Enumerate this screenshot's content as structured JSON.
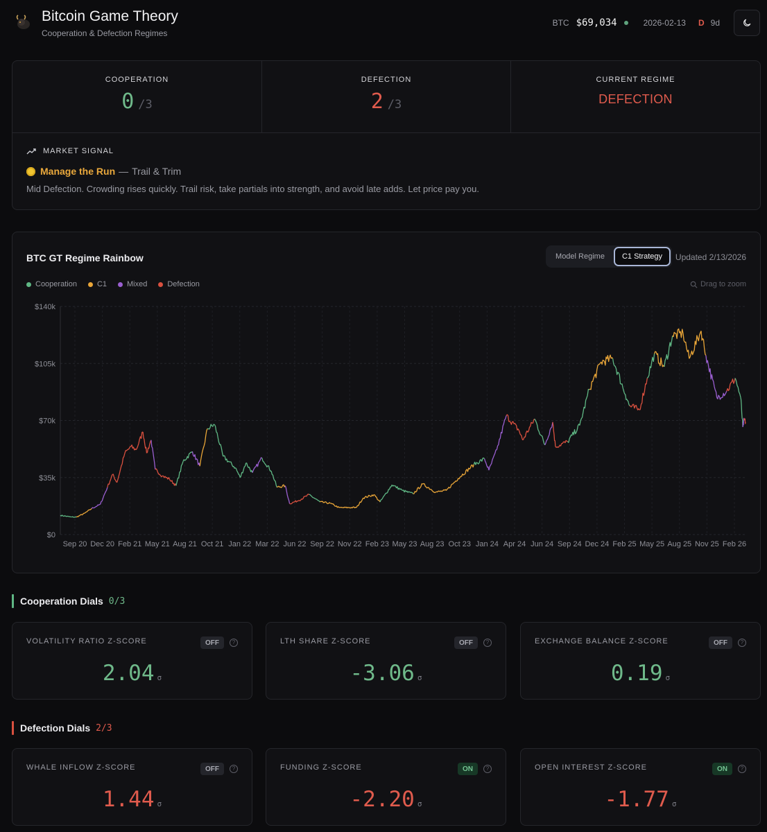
{
  "header": {
    "title": "Bitcoin Game Theory",
    "subtitle": "Cooperation & Defection Regimes",
    "btc_label": "BTC",
    "btc_price": "$69,034",
    "date": "2026-02-13",
    "regime_letter": "D",
    "regime_age": "9d",
    "icons": [
      "bull-logo-icon",
      "moon-icon"
    ]
  },
  "summary": {
    "cooperation": {
      "label": "COOPERATION",
      "value": "0",
      "total": "/3"
    },
    "defection": {
      "label": "DEFECTION",
      "value": "2",
      "total": "/3"
    },
    "regime": {
      "label": "CURRENT REGIME",
      "value": "DEFECTION"
    },
    "signal": {
      "heading": "MARKET SIGNAL",
      "icon": "trending-up-icon",
      "name": "Manage the Run",
      "dash": "—",
      "subtitle": "Trail & Trim",
      "description": "Mid Defection. Crowding rises quickly. Trail risk, take partials into strength, and avoid late adds. Let price pay you."
    }
  },
  "chart": {
    "title": "BTC GT Regime Rainbow",
    "toggle": [
      "Model Regime",
      "C1 Strategy"
    ],
    "toggle_active": "C1 Strategy",
    "updated": "Updated 2/13/2026",
    "zoom_hint": "Drag to zoom",
    "legend": [
      {
        "label": "Cooperation",
        "color": "#5fb784"
      },
      {
        "label": "C1",
        "color": "#eaa638"
      },
      {
        "label": "Mixed",
        "color": "#9a5fd0"
      },
      {
        "label": "Defection",
        "color": "#d9503f"
      }
    ]
  },
  "chart_data": {
    "type": "line",
    "title": "BTC GT Regime Rainbow",
    "ylim": [
      0,
      140000
    ],
    "y_ticks": [
      "$0",
      "$35k",
      "$70k",
      "$105k",
      "$140k"
    ],
    "x_ticks": [
      "Sep 20",
      "Dec 20",
      "Feb 21",
      "May 21",
      "Aug 21",
      "Oct 21",
      "Jan 22",
      "Mar 22",
      "Jun 22",
      "Sep 22",
      "Nov 22",
      "Feb 23",
      "May 23",
      "Aug 23",
      "Oct 23",
      "Jan 24",
      "Apr 24",
      "Jun 24",
      "Sep 24",
      "Dec 24",
      "Feb 25",
      "May 25",
      "Aug 25",
      "Nov 25",
      "Feb 26"
    ],
    "x_range": [
      "2020-08-15",
      "2026-02-13"
    ],
    "grid": true,
    "series": [
      {
        "name": "Cooperation",
        "color": "#5fb784"
      },
      {
        "name": "C1",
        "color": "#eaa638"
      },
      {
        "name": "Mixed",
        "color": "#9a5fd0"
      },
      {
        "name": "Defection",
        "color": "#d9503f"
      }
    ],
    "points": [
      {
        "x": "2020-08-15",
        "y": 11800,
        "r": 0
      },
      {
        "x": "2020-09-15",
        "y": 10800,
        "r": 0
      },
      {
        "x": "2020-10-01",
        "y": 10700,
        "r": 1
      },
      {
        "x": "2020-10-25",
        "y": 13000,
        "r": 1
      },
      {
        "x": "2020-11-15",
        "y": 16000,
        "r": 2
      },
      {
        "x": "2020-12-10",
        "y": 18500,
        "r": 2
      },
      {
        "x": "2020-12-31",
        "y": 29000,
        "r": 3
      },
      {
        "x": "2021-01-15",
        "y": 37000,
        "r": 3
      },
      {
        "x": "2021-01-28",
        "y": 32000,
        "r": 3
      },
      {
        "x": "2021-02-20",
        "y": 50000,
        "r": 3
      },
      {
        "x": "2021-03-10",
        "y": 54000,
        "r": 3
      },
      {
        "x": "2021-03-25",
        "y": 52000,
        "r": 3
      },
      {
        "x": "2021-04-14",
        "y": 63000,
        "r": 3
      },
      {
        "x": "2021-04-25",
        "y": 50000,
        "r": 3
      },
      {
        "x": "2021-05-08",
        "y": 58000,
        "r": 2
      },
      {
        "x": "2021-05-20",
        "y": 40000,
        "r": 3
      },
      {
        "x": "2021-06-10",
        "y": 36000,
        "r": 3
      },
      {
        "x": "2021-07-01",
        "y": 34000,
        "r": 3
      },
      {
        "x": "2021-07-20",
        "y": 30000,
        "r": 0
      },
      {
        "x": "2021-08-10",
        "y": 45000,
        "r": 0
      },
      {
        "x": "2021-09-06",
        "y": 51000,
        "r": 2
      },
      {
        "x": "2021-09-28",
        "y": 42000,
        "r": 1
      },
      {
        "x": "2021-10-20",
        "y": 65000,
        "r": 0
      },
      {
        "x": "2021-11-10",
        "y": 67500,
        "r": 0
      },
      {
        "x": "2021-12-05",
        "y": 48000,
        "r": 0
      },
      {
        "x": "2022-01-10",
        "y": 41000,
        "r": 0
      },
      {
        "x": "2022-01-24",
        "y": 35000,
        "r": 0
      },
      {
        "x": "2022-02-10",
        "y": 44000,
        "r": 0
      },
      {
        "x": "2022-03-01",
        "y": 38000,
        "r": 2
      },
      {
        "x": "2022-03-29",
        "y": 47000,
        "r": 0
      },
      {
        "x": "2022-04-25",
        "y": 39000,
        "r": 0
      },
      {
        "x": "2022-05-12",
        "y": 29000,
        "r": 1
      },
      {
        "x": "2022-06-05",
        "y": 30000,
        "r": 2
      },
      {
        "x": "2022-06-18",
        "y": 19000,
        "r": 3
      },
      {
        "x": "2022-07-15",
        "y": 21000,
        "r": 3
      },
      {
        "x": "2022-08-14",
        "y": 24500,
        "r": 0
      },
      {
        "x": "2022-09-15",
        "y": 20000,
        "r": 1
      },
      {
        "x": "2022-10-15",
        "y": 19200,
        "r": 1
      },
      {
        "x": "2022-11-10",
        "y": 16500,
        "r": 1
      },
      {
        "x": "2022-12-31",
        "y": 16600,
        "r": 1
      },
      {
        "x": "2023-01-20",
        "y": 22500,
        "r": 1
      },
      {
        "x": "2023-02-20",
        "y": 24500,
        "r": 1
      },
      {
        "x": "2023-03-10",
        "y": 20000,
        "r": 0
      },
      {
        "x": "2023-04-14",
        "y": 30500,
        "r": 0
      },
      {
        "x": "2023-05-15",
        "y": 27000,
        "r": 0
      },
      {
        "x": "2023-06-15",
        "y": 25000,
        "r": 1
      },
      {
        "x": "2023-07-13",
        "y": 31000,
        "r": 1
      },
      {
        "x": "2023-08-20",
        "y": 26000,
        "r": 1
      },
      {
        "x": "2023-09-20",
        "y": 27000,
        "r": 1
      },
      {
        "x": "2023-10-25",
        "y": 34500,
        "r": 1
      },
      {
        "x": "2023-12-10",
        "y": 43000,
        "r": 0
      },
      {
        "x": "2024-01-10",
        "y": 46500,
        "r": 2
      },
      {
        "x": "2024-01-23",
        "y": 39500,
        "r": 2
      },
      {
        "x": "2024-02-15",
        "y": 52000,
        "r": 2
      },
      {
        "x": "2024-03-14",
        "y": 73000,
        "r": 3
      },
      {
        "x": "2024-04-20",
        "y": 64000,
        "r": 3
      },
      {
        "x": "2024-05-01",
        "y": 58000,
        "r": 3
      },
      {
        "x": "2024-06-05",
        "y": 71000,
        "r": 0
      },
      {
        "x": "2024-07-05",
        "y": 55000,
        "r": 2
      },
      {
        "x": "2024-07-28",
        "y": 69000,
        "r": 3
      },
      {
        "x": "2024-08-05",
        "y": 54000,
        "r": 3
      },
      {
        "x": "2024-09-10",
        "y": 57000,
        "r": 0
      },
      {
        "x": "2024-10-15",
        "y": 67000,
        "r": 0
      },
      {
        "x": "2024-11-12",
        "y": 89000,
        "r": 1
      },
      {
        "x": "2024-12-17",
        "y": 106000,
        "r": 1
      },
      {
        "x": "2025-01-20",
        "y": 108000,
        "r": 0
      },
      {
        "x": "2025-02-26",
        "y": 86000,
        "r": 0
      },
      {
        "x": "2025-03-10",
        "y": 79000,
        "r": 3
      },
      {
        "x": "2025-04-08",
        "y": 76500,
        "r": 3
      },
      {
        "x": "2025-05-01",
        "y": 96000,
        "r": 0
      },
      {
        "x": "2025-05-22",
        "y": 111000,
        "r": 1
      },
      {
        "x": "2025-06-20",
        "y": 103000,
        "r": 0
      },
      {
        "x": "2025-07-14",
        "y": 122000,
        "r": 1
      },
      {
        "x": "2025-08-14",
        "y": 123500,
        "r": 1
      },
      {
        "x": "2025-09-01",
        "y": 108000,
        "r": 1
      },
      {
        "x": "2025-10-06",
        "y": 125000,
        "r": 1
      },
      {
        "x": "2025-10-20",
        "y": 110000,
        "r": 2
      },
      {
        "x": "2025-11-21",
        "y": 84000,
        "r": 2
      },
      {
        "x": "2025-12-20",
        "y": 88000,
        "r": 3
      },
      {
        "x": "2026-01-14",
        "y": 96000,
        "r": 0
      },
      {
        "x": "2026-01-30",
        "y": 84000,
        "r": 0
      },
      {
        "x": "2026-02-05",
        "y": 66000,
        "r": 2
      },
      {
        "x": "2026-02-09",
        "y": 70500,
        "r": 3
      },
      {
        "x": "2026-02-13",
        "y": 69034,
        "r": 3
      }
    ]
  },
  "cooperation_dials": {
    "title": "Cooperation Dials",
    "count": "0/3",
    "items": [
      {
        "label": "VOLATILITY RATIO Z-SCORE",
        "state": "OFF",
        "value": "2.04",
        "unit": "σ"
      },
      {
        "label": "LTH SHARE Z-SCORE",
        "state": "OFF",
        "value": "-3.06",
        "unit": "σ"
      },
      {
        "label": "EXCHANGE BALANCE Z-SCORE",
        "state": "OFF",
        "value": "0.19",
        "unit": "σ"
      }
    ]
  },
  "defection_dials": {
    "title": "Defection Dials",
    "count": "2/3",
    "items": [
      {
        "label": "WHALE INFLOW Z-SCORE",
        "state": "OFF",
        "value": "1.44",
        "unit": "σ"
      },
      {
        "label": "FUNDING Z-SCORE",
        "state": "ON",
        "value": "-2.20",
        "unit": "σ"
      },
      {
        "label": "OPEN INTEREST Z-SCORE",
        "state": "ON",
        "value": "-1.77",
        "unit": "σ"
      }
    ]
  },
  "help_glyph": "?"
}
